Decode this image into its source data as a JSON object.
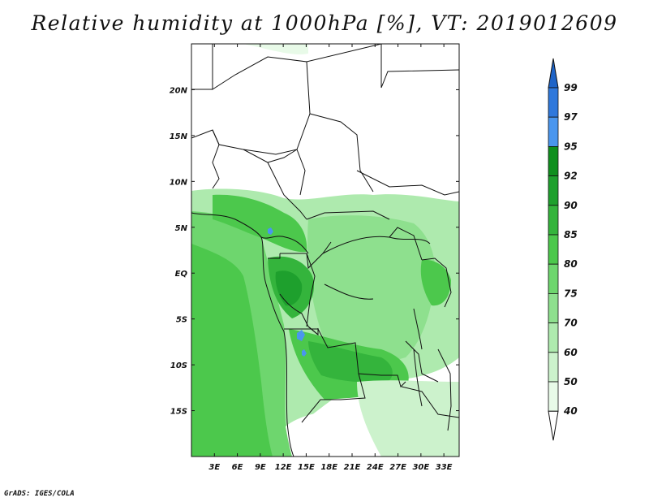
{
  "title": "Relative humidity at 1000hPa [%], VT: 2019012609",
  "credit": "GrADS: IGES/COLA",
  "map": {
    "lon_range": [
      0,
      35
    ],
    "lat_range": [
      -20,
      25
    ],
    "lon_ticks": [
      "3E",
      "6E",
      "9E",
      "12E",
      "15E",
      "18E",
      "21E",
      "24E",
      "27E",
      "30E",
      "33E"
    ],
    "lat_ticks": [
      "20N",
      "15N",
      "10N",
      "5N",
      "EQ",
      "5S",
      "10S",
      "15S"
    ]
  },
  "colorbar": {
    "labels": [
      "99",
      "97",
      "95",
      "92",
      "90",
      "85",
      "80",
      "75",
      "70",
      "60",
      "50",
      "40"
    ],
    "colors": {
      "above_99": "#1e64c8",
      "97_99": "#2f78dc",
      "95_97": "#4a96ee",
      "92_95": "#0f8f1e",
      "90_92": "#1ea02d",
      "85_90": "#34b43c",
      "80_85": "#4cc84c",
      "75_80": "#6ed66e",
      "70_75": "#8ee08e",
      "60_70": "#aeeaae",
      "50_60": "#ccf2cc",
      "40_50": "#e8fae8",
      "below_40": "#ffffff"
    }
  }
}
